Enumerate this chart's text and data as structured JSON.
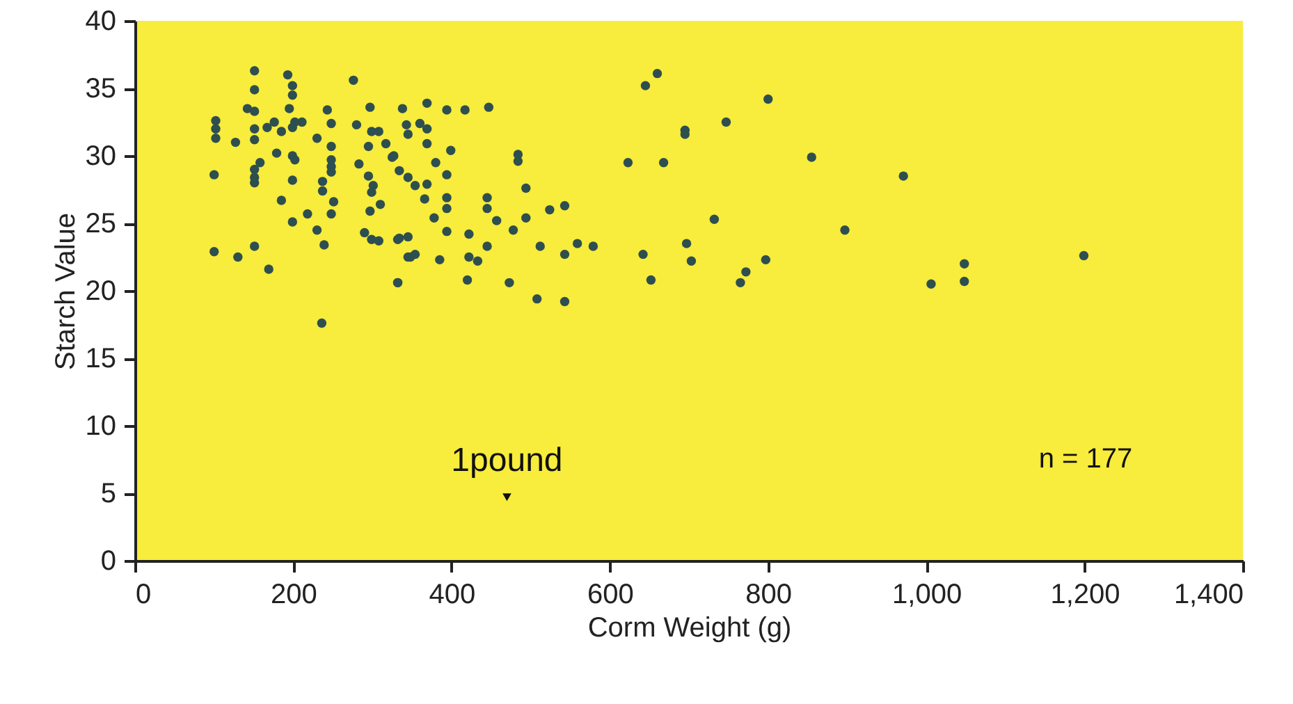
{
  "chart_data": {
    "type": "scatter",
    "xlabel": "Corm Weight (g)",
    "ylabel": "Starch  Value",
    "xlim": [
      0,
      1400
    ],
    "xticks": [
      0,
      {
        "value": 200,
        "label": "200"
      },
      400,
      600,
      800,
      {
        "value": 1000,
        "label": "1,000"
      },
      {
        "value": 1200,
        "label": "1,200"
      },
      {
        "value": 1400,
        "label": "1,400"
      }
    ],
    "ylim": [
      0,
      40
    ],
    "yticks": [
      0,
      5,
      10,
      15,
      20,
      25,
      30,
      35,
      40
    ],
    "grid": false,
    "annotations": [
      {
        "text": "1pound",
        "x": 470,
        "y": 4.7
      },
      "n  =   177"
    ],
    "series": [
      {
        "color": "#2e4f4f",
        "x": [
          660,
          645,
          800,
          747,
          695,
          695,
          623,
          668,
          855,
          971,
          732,
          897,
          697,
          642,
          703,
          797,
          772,
          765,
          652,
          1199,
          1048,
          1048,
          1006,
          338,
          369,
          394,
          417,
          447,
          343,
          345,
          360,
          369,
          369,
          327,
          399,
          380,
          484,
          484,
          334,
          345,
          354,
          369,
          366,
          394,
          394,
          394,
          378,
          394,
          445,
          445,
          494,
          457,
          494,
          524,
          543,
          422,
          478,
          334,
          345,
          445,
          512,
          559,
          579,
          543,
          348,
          354,
          385,
          422,
          433,
          332,
          420,
          473,
          508,
          543,
          151,
          151,
          193,
          199,
          199,
          276,
          102,
          102,
          102,
          142,
          151,
          151,
          151,
          127,
          167,
          176,
          185,
          195,
          202,
          211,
          199,
          243,
          248,
          230,
          248,
          248,
          248,
          248,
          179,
          199,
          202,
          100,
          158,
          151,
          151,
          151,
          199,
          185,
          237,
          237,
          251,
          248,
          218,
          199,
          230,
          239,
          297,
          280,
          299,
          308,
          295,
          317,
          325,
          283,
          295,
          301,
          299,
          310,
          297,
          290,
          299,
          308,
          332,
          345,
          332,
          100,
          130,
          151,
          169,
          236
        ],
        "values": [
          36.1,
          35.2,
          34.2,
          32.5,
          31.6,
          31.9,
          29.5,
          29.5,
          29.9,
          28.5,
          25.3,
          24.5,
          23.5,
          22.7,
          22.2,
          22.3,
          21.4,
          20.6,
          20.8,
          22.6,
          22.0,
          20.7,
          20.5,
          33.5,
          33.9,
          33.4,
          33.4,
          33.6,
          32.3,
          31.6,
          32.4,
          32.0,
          30.9,
          30.0,
          30.4,
          29.5,
          29.6,
          30.1,
          28.9,
          28.4,
          27.8,
          27.9,
          26.8,
          28.6,
          26.9,
          26.1,
          25.4,
          24.4,
          26.9,
          26.1,
          27.6,
          25.2,
          25.4,
          26.0,
          26.3,
          24.2,
          24.5,
          23.9,
          24.0,
          23.3,
          23.3,
          23.5,
          23.3,
          22.7,
          22.5,
          22.7,
          22.3,
          22.5,
          22.2,
          20.6,
          20.8,
          20.6,
          19.4,
          19.2,
          36.3,
          34.9,
          36.0,
          35.2,
          34.5,
          35.6,
          32.6,
          32.0,
          31.3,
          33.5,
          33.3,
          32.0,
          31.2,
          31.0,
          32.1,
          32.5,
          31.8,
          33.5,
          32.5,
          32.5,
          32.1,
          33.4,
          32.4,
          31.3,
          30.7,
          29.7,
          29.2,
          28.8,
          30.2,
          30.0,
          29.7,
          28.6,
          29.5,
          29.0,
          28.4,
          28.0,
          28.2,
          26.7,
          28.1,
          27.4,
          26.6,
          25.7,
          25.7,
          25.1,
          24.5,
          23.4,
          33.6,
          32.3,
          31.8,
          31.8,
          30.7,
          30.9,
          29.9,
          29.4,
          28.5,
          27.8,
          27.3,
          26.4,
          25.9,
          24.3,
          23.8,
          23.7,
          23.8,
          22.5,
          20.6,
          22.9,
          22.5,
          23.3,
          21.6,
          17.6
        ]
      }
    ]
  }
}
